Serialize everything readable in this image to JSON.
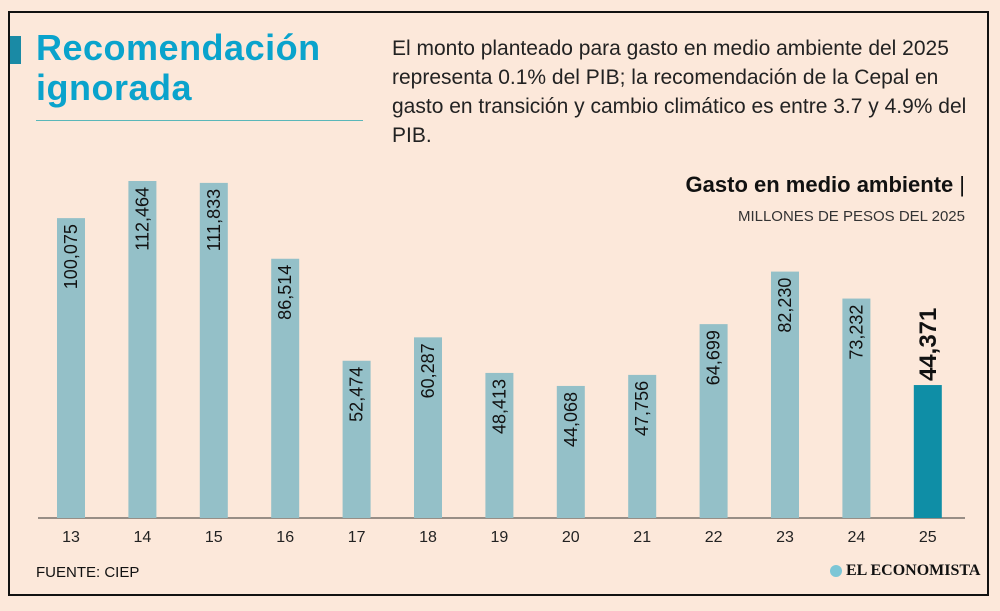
{
  "title": "Recomendación ignorada",
  "description": "El monto planteado para gasto en medio ambiente del 2025 representa 0.1% del PIB; la recomendación de la Cepal en gasto en transición y cambio climático es entre 3.7 y 4.9% del PIB.",
  "source": "FUENTE: CIEP",
  "logo": "EL ECONOMISTA",
  "colors": {
    "bar": "#94c0c8",
    "highlight": "#0f8ea6",
    "title": "#0aa3cc",
    "background": "#fce8da"
  },
  "chart_data": {
    "type": "bar",
    "title": "Gasto en medio ambiente",
    "ylabel": "MILLONES DE PESOS DEL 2025",
    "categories": [
      "13",
      "14",
      "15",
      "16",
      "17",
      "18",
      "19",
      "20",
      "21",
      "22",
      "23",
      "24",
      "25"
    ],
    "values": [
      100075,
      112464,
      111833,
      86514,
      52474,
      60287,
      48413,
      44068,
      47756,
      64699,
      82230,
      73232,
      44371
    ],
    "labels": [
      "100,075",
      "112,464",
      "111,833",
      "86,514",
      "52,474",
      "60,287",
      "48,413",
      "44,068",
      "47,756",
      "64,699",
      "82,230",
      "73,232",
      "44,371"
    ],
    "highlight_index": 12,
    "ylim": [
      0,
      112464
    ],
    "grid": false
  }
}
